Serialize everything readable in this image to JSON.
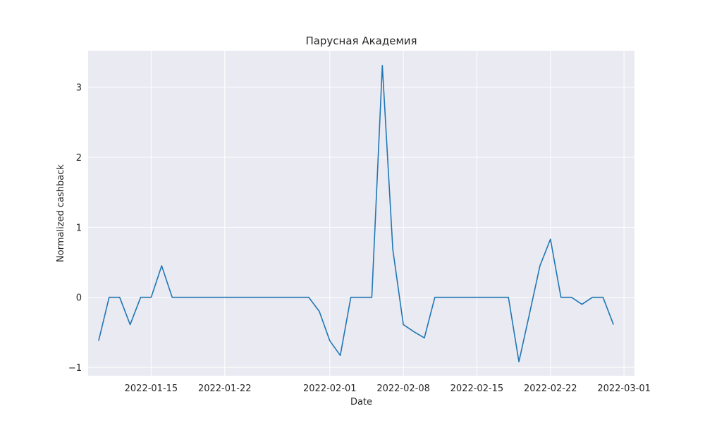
{
  "chart_data": {
    "type": "line",
    "title": "Парусная Академия",
    "xlabel": "Date",
    "ylabel": "Normalized cashback",
    "x_tick_labels": [
      "2022-01-15",
      "2022-01-22",
      "2022-02-01",
      "2022-02-08",
      "2022-02-15",
      "2022-02-22",
      "2022-03-01"
    ],
    "y_tick_labels": [
      "−1",
      "0",
      "1",
      "2",
      "3"
    ],
    "y_ticks": [
      -1,
      0,
      1,
      2,
      3
    ],
    "ylim": [
      -1.12,
      3.52
    ],
    "xlim": [
      "2022-01-09",
      "2022-03-02"
    ],
    "grid": true,
    "colors": {
      "background": "#eaeaf2",
      "line": "#1f77b4",
      "grid": "#ffffff"
    },
    "series": [
      {
        "x": [
          "2022-01-10",
          "2022-01-11",
          "2022-01-12",
          "2022-01-13",
          "2022-01-14",
          "2022-01-15",
          "2022-01-16",
          "2022-01-17",
          "2022-01-18",
          "2022-01-19",
          "2022-01-20",
          "2022-01-21",
          "2022-01-22",
          "2022-01-23",
          "2022-01-24",
          "2022-01-25",
          "2022-01-26",
          "2022-01-27",
          "2022-01-28",
          "2022-01-29",
          "2022-01-30",
          "2022-01-31",
          "2022-02-01",
          "2022-02-02",
          "2022-02-03",
          "2022-02-04",
          "2022-02-05",
          "2022-02-06",
          "2022-02-07",
          "2022-02-08",
          "2022-02-09",
          "2022-02-10",
          "2022-02-11",
          "2022-02-12",
          "2022-02-13",
          "2022-02-14",
          "2022-02-15",
          "2022-02-16",
          "2022-02-17",
          "2022-02-18",
          "2022-02-19",
          "2022-02-20",
          "2022-02-21",
          "2022-02-22",
          "2022-02-23",
          "2022-02-24",
          "2022-02-25",
          "2022-02-26",
          "2022-02-27",
          "2022-02-28"
        ],
        "values": [
          -0.62,
          0,
          0,
          -0.39,
          0,
          0,
          0.45,
          0,
          0,
          0,
          0,
          0,
          0,
          0,
          0,
          0,
          0,
          0,
          0,
          0,
          0,
          -0.2,
          -0.62,
          -0.83,
          0,
          0,
          0,
          3.31,
          0.68,
          -0.39,
          -0.49,
          -0.58,
          0,
          0,
          0,
          0,
          0,
          0,
          0,
          0,
          -0.92,
          -0.24,
          0.45,
          0.83,
          0,
          0,
          -0.1,
          0,
          0,
          -0.39
        ]
      }
    ]
  }
}
